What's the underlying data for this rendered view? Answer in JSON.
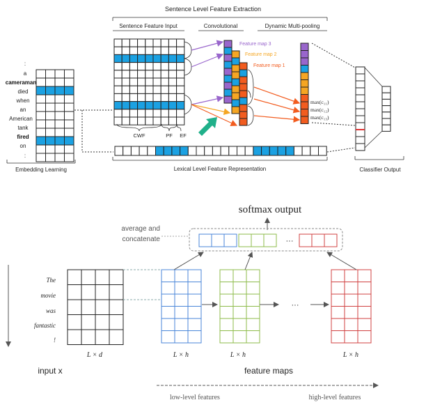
{
  "top": {
    "title": "Sentence Level Feature Extraction",
    "sections": {
      "sentence_input": "Sentence Feature Input",
      "convolutional": "Convolutional",
      "pooling": "Dynamic Multi-pooling",
      "embedding": "Embedding Learning",
      "lexical": "Lexical Level Feature Representation",
      "classifier": "Classifier Output"
    },
    "words": [
      ":",
      "a",
      "cameraman",
      "died",
      "when",
      "an",
      "American",
      "tank",
      "fired",
      "on",
      ":"
    ],
    "bold_words": [
      "cameraman",
      "fired"
    ],
    "feature_groups": [
      "CWF",
      "PF",
      "EF"
    ],
    "feature_maps": [
      "Feature map 3",
      "Feature map 2",
      "Feature map 1"
    ],
    "max_labels": [
      "max(c₁₁)",
      "max(c₁₂)",
      "max(c₁₃)"
    ]
  },
  "bottom": {
    "title": "softmax output",
    "avg_label": [
      "average and",
      "concatenate"
    ],
    "sentence": [
      "The",
      "movie",
      "was",
      "fantastic",
      "!"
    ],
    "input_dim": "L × d",
    "map_dim": "L × h",
    "ellipsis": "···",
    "input_label": "input x",
    "maps_label": "feature maps",
    "low_label": "low-level features",
    "high_label": "high-level features"
  },
  "colors": {
    "blue": "#1ba1e2",
    "purple": "#9966cc",
    "yellow": "#f5a623",
    "orange": "#f25c1f",
    "green_arrow": "#20b08a",
    "bottom_blue": "#4a86d8",
    "bottom_green": "#8dbb4a",
    "bottom_red": "#d04040"
  }
}
